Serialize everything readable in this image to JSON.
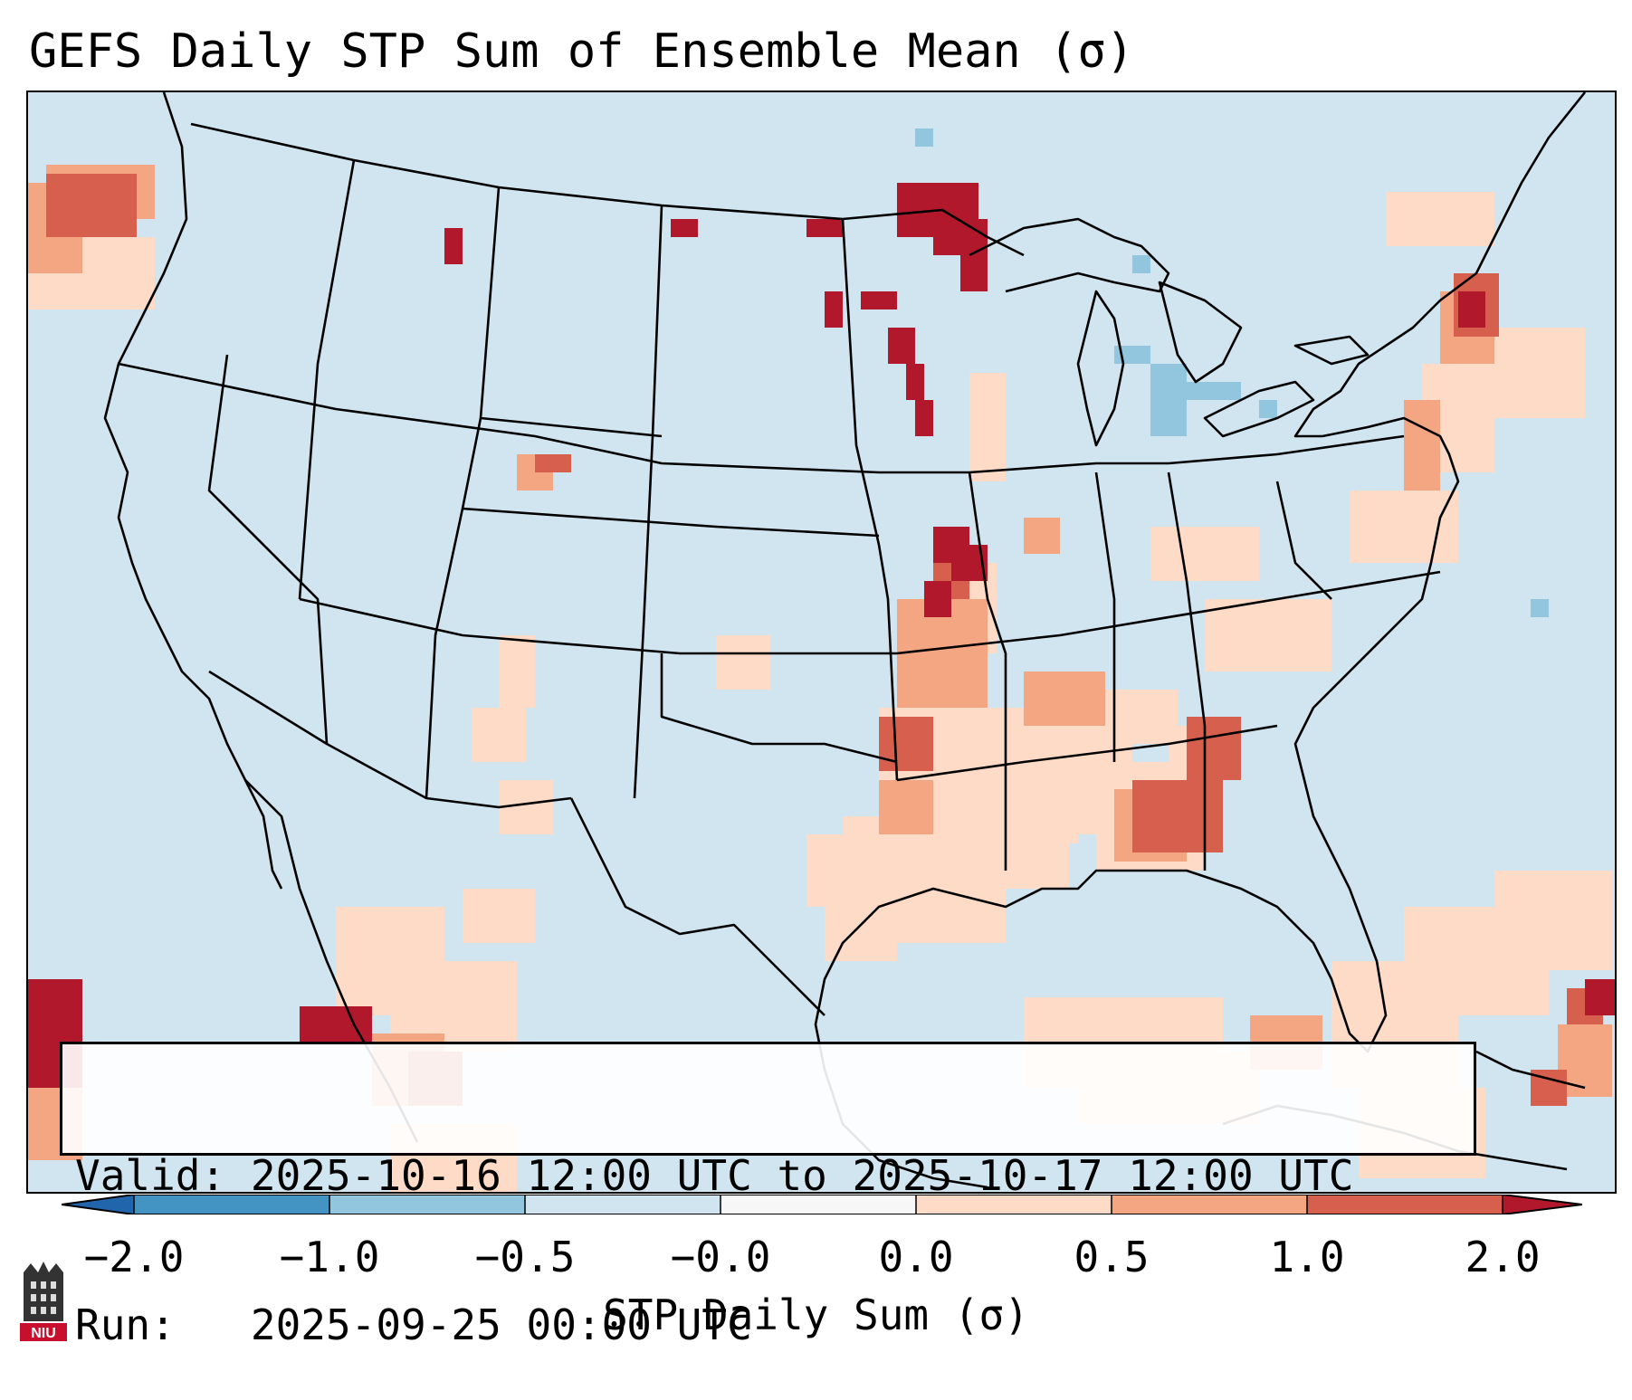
{
  "title": "GEFS Daily STP Sum of Ensemble Mean (σ)",
  "info": {
    "valid_label": "Valid:",
    "valid_value": "2025-10-16 12:00 UTC to 2025-10-17 12:00 UTC",
    "run_label": "Run:",
    "run_value": "2025-09-25 00:00 UTC"
  },
  "colorbar": {
    "label": "STP Daily Sum (σ)",
    "ticks": [
      "−2.0",
      "−1.0",
      "−0.5",
      "−0.0",
      "0.0",
      "0.5",
      "1.0",
      "2.0"
    ],
    "bins": [
      {
        "range": "< -2.0",
        "color": "#2166ac"
      },
      {
        "range": "-2.0 to -1.0",
        "color": "#4393c3"
      },
      {
        "range": "-1.0 to -0.5",
        "color": "#92c5de"
      },
      {
        "range": "-0.5 to -0.0",
        "color": "#d1e5f0"
      },
      {
        "range": "-0.0 to 0.0",
        "color": "#f7f7f7"
      },
      {
        "range": "0.0 to 0.5",
        "color": "#fddbc7"
      },
      {
        "range": "0.5 to 1.0",
        "color": "#f4a582"
      },
      {
        "range": "1.0 to 2.0",
        "color": "#d6604d"
      },
      {
        "range": "> 2.0",
        "color": "#b2182b"
      }
    ]
  },
  "map": {
    "background_color": "#d1e5f0",
    "regions": "CONUS, southern Canada, northern Mexico, Gulf of Mexico, western Atlantic",
    "anomaly_cells": [
      {
        "area": "Ontario / Minnesota border (Lake of the Woods)",
        "value_bin": "> 2.0"
      },
      {
        "area": "Eastern North Dakota",
        "value_bin": "> 2.0"
      },
      {
        "area": "Western Minnesota",
        "value_bin": "> 2.0"
      },
      {
        "area": "Northwest Missouri",
        "value_bin": "> 2.0"
      },
      {
        "area": "Eastern Iowa / Missouri",
        "value_bin": "1.0 to 2.0"
      },
      {
        "area": "Alabama / Georgia",
        "value_bin": "1.0 to 2.0"
      },
      {
        "area": "Southeast Kansas / Oklahoma",
        "value_bin": "1.0 to 2.0"
      },
      {
        "area": "Quebec / Maine",
        "value_bin": "1.0 to 2.0"
      },
      {
        "area": "Northern Idaho",
        "value_bin": "1.0 to 2.0"
      },
      {
        "area": "Northern Wyoming",
        "value_bin": "1.0 to 2.0"
      },
      {
        "area": "Gulf of California / Sinaloa",
        "value_bin": "1.0 to 2.0"
      },
      {
        "area": "Pacific (Baja offshore)",
        "value_bin": "> 2.0"
      },
      {
        "area": "Pacific Northwest offshore",
        "value_bin": "1.0 to 2.0"
      },
      {
        "area": "Caribbean / Hispaniola",
        "value_bin": "1.0 to 2.0"
      },
      {
        "area": "Lake Superior / Lake Huron",
        "value_bin": "-1.0 to -0.5"
      },
      {
        "area": "Tennessee / Arkansas / Mississippi / Texas",
        "value_bin": "0.0 to 0.5"
      }
    ]
  },
  "logo": {
    "text": "NIU"
  }
}
